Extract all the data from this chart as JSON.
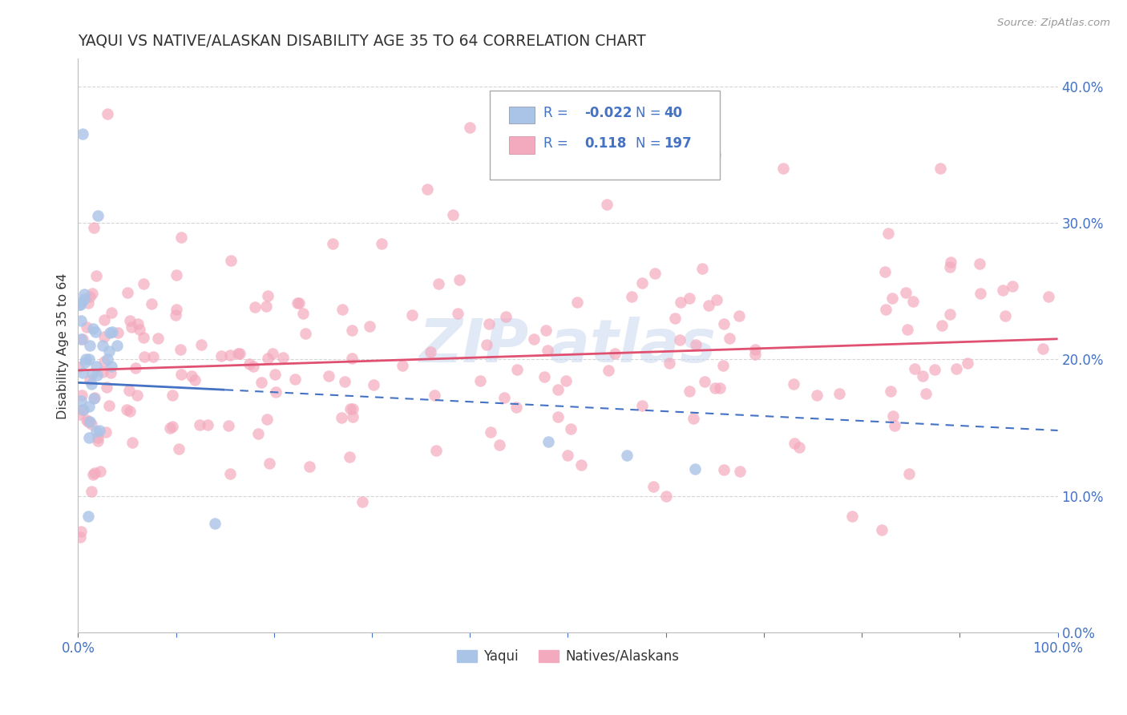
{
  "title": "YAQUI VS NATIVE/ALASKAN DISABILITY AGE 35 TO 64 CORRELATION CHART",
  "source": "Source: ZipAtlas.com",
  "ylabel": "Disability Age 35 to 64",
  "xlim": [
    0.0,
    1.0
  ],
  "ylim": [
    0.0,
    0.42
  ],
  "yaqui_color": "#aac4e8",
  "native_color": "#f4aabe",
  "yaqui_line_color": "#4472c4",
  "native_line_color": "#e05070",
  "legend_text_color": "#4472c4",
  "legend_R_color": "#4472c4",
  "background_color": "#ffffff",
  "grid_color": "#cccccc",
  "title_color": "#333333",
  "axis_color": "#4472c4",
  "watermark_color": "#c8d8ee",
  "yaqui_R": -0.022,
  "yaqui_N": 40,
  "native_R": 0.118,
  "native_N": 197,
  "yaqui_line_x0": 0.0,
  "yaqui_line_x_solid_end": 0.15,
  "yaqui_line_x_end": 1.0,
  "yaqui_line_y0": 0.183,
  "yaqui_line_y_end": 0.148,
  "native_line_x0": 0.0,
  "native_line_x_end": 1.0,
  "native_line_y0": 0.192,
  "native_line_y_end": 0.215
}
